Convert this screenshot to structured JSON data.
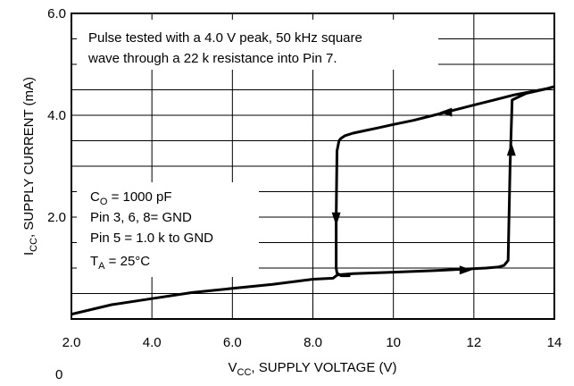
{
  "chart_data": {
    "type": "line",
    "xlabel": {
      "main": "V",
      "sub": "CC",
      "rest": ", SUPPLY VOLTAGE (V)"
    },
    "ylabel": {
      "main": "I",
      "sub": "CC",
      "rest": ", SUPPLY CURRENT (mA)"
    },
    "xlim": [
      2.0,
      14
    ],
    "ylim": [
      0,
      6.0
    ],
    "x_ticks": [
      {
        "value": 2.0,
        "label": "2.0"
      },
      {
        "value": 4.0,
        "label": "4.0"
      },
      {
        "value": 6.0,
        "label": "6.0"
      },
      {
        "value": 8.0,
        "label": "8.0"
      },
      {
        "value": 10,
        "label": "10"
      },
      {
        "value": 12,
        "label": "12"
      },
      {
        "value": 14,
        "label": "14"
      }
    ],
    "y_ticks": [
      {
        "value": 6.0,
        "label": "6.0"
      },
      {
        "value": 4.0,
        "label": "4.0"
      },
      {
        "value": 2.0,
        "label": "2.0"
      }
    ],
    "stray_label": "0",
    "grid": true,
    "grid_y_step": 0.5,
    "note_top": [
      "Pulse tested with a 4.0 V peak, 50 kHz square",
      "wave through a 22 k resistance into Pin 7."
    ],
    "note_conditions": [
      {
        "main": "C",
        "sub": "O",
        "rest": " = 1000 pF"
      },
      {
        "main": "Pin 3, 6, 8=  GND",
        "sub": "",
        "rest": ""
      },
      {
        "main": "Pin 5 = 1.0 k to GND",
        "sub": "",
        "rest": ""
      },
      {
        "main": "T",
        "sub": "A",
        "rest": " = 25°C"
      }
    ],
    "series": [
      {
        "x": [
          1.5,
          3.0,
          4.0,
          5.0,
          6.0,
          7.0,
          8.0,
          8.5,
          8.55,
          8.6,
          8.65,
          9.0,
          10.0,
          11.0,
          11.8,
          12.3,
          12.6,
          12.75,
          12.85,
          12.9,
          12.95,
          13.3,
          13.8,
          14.5
        ],
        "y": [
          0.0,
          0.28,
          0.4,
          0.52,
          0.6,
          0.68,
          0.78,
          0.8,
          0.83,
          0.86,
          0.87,
          0.89,
          0.92,
          0.95,
          0.98,
          1.0,
          1.02,
          1.05,
          1.15,
          3.0,
          4.3,
          4.43,
          4.52,
          4.67
        ]
      },
      {
        "x": [
          14.5,
          13.8,
          13.0,
          12.5,
          12.0,
          11.5,
          11.0,
          10.5,
          10.0,
          9.6,
          9.3,
          9.0,
          8.8,
          8.7,
          8.65,
          8.6,
          8.58,
          8.58,
          8.6,
          8.7,
          8.9
        ],
        "y": [
          4.67,
          4.52,
          4.4,
          4.3,
          4.2,
          4.1,
          4.0,
          3.9,
          3.82,
          3.75,
          3.7,
          3.65,
          3.6,
          3.55,
          3.5,
          3.3,
          2.0,
          1.0,
          0.9,
          0.85,
          0.85
        ]
      }
    ],
    "arrows": [
      {
        "x": 11.8,
        "y": 0.96,
        "direction": "right"
      },
      {
        "x": 12.93,
        "y": 3.33,
        "direction": "up"
      },
      {
        "x": 11.3,
        "y": 4.06,
        "direction": "left"
      },
      {
        "x": 8.58,
        "y": 1.97,
        "direction": "down"
      }
    ],
    "colors": {
      "line": "#000000",
      "grid": "#000000",
      "background": "#ffffff"
    }
  }
}
